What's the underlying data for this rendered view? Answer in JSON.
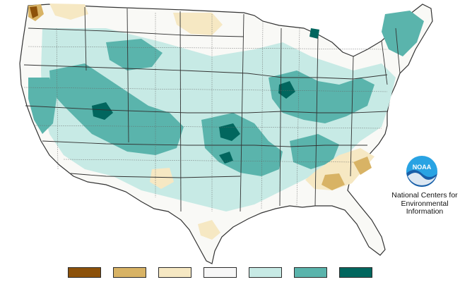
{
  "map": {
    "region": "contiguous-united-states",
    "layers": [
      "precipitation-percentile-shading",
      "state-boundaries",
      "climate-division-boundaries"
    ]
  },
  "legend": {
    "colors": [
      "#8c510a",
      "#d8b365",
      "#f6e8c3",
      "#f7f7f7",
      "#c7eae5",
      "#5ab4ac",
      "#01665e"
    ]
  },
  "logo": {
    "icon": "noaa-logo",
    "agency_abbrev": "NOAA",
    "lines": [
      "National Centers for",
      "Environmental",
      "Information"
    ]
  },
  "palette": {
    "land_background": "#ffffff",
    "border": "#333333",
    "noaa_blue": "#1a5fa8",
    "noaa_light_blue": "#29a3e3"
  }
}
